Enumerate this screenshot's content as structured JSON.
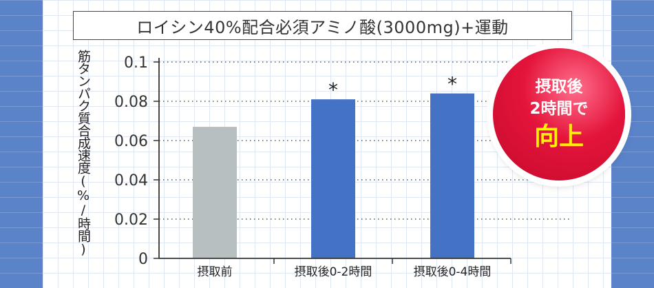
{
  "chart_data": {
    "type": "bar",
    "title": "ロイシン40%配合必須アミノ酸(3000mg)+運動",
    "ylabel": "筋タンパク質合成速度(%/時間)",
    "xlabel": "",
    "categories": [
      "摂取前",
      "摂取後0-2時間",
      "摂取後0-4時間"
    ],
    "values": [
      0.067,
      0.081,
      0.084
    ],
    "colors": [
      "#b8bfc0",
      "#4472c4",
      "#4472c4"
    ],
    "ylim": [
      0,
      0.1
    ],
    "yticks": [
      0,
      0.02,
      0.04,
      0.06,
      0.08,
      0.1
    ],
    "ytick_labels": [
      "0",
      "0.02",
      "0.04",
      "0.06",
      "0.08",
      "0.1"
    ],
    "significance_marker": "*",
    "significant": [
      false,
      true,
      true
    ],
    "grid": "dotted horizontal"
  },
  "badge": {
    "line1": "摂取後",
    "line2": "2時間で",
    "line3": "向上"
  }
}
